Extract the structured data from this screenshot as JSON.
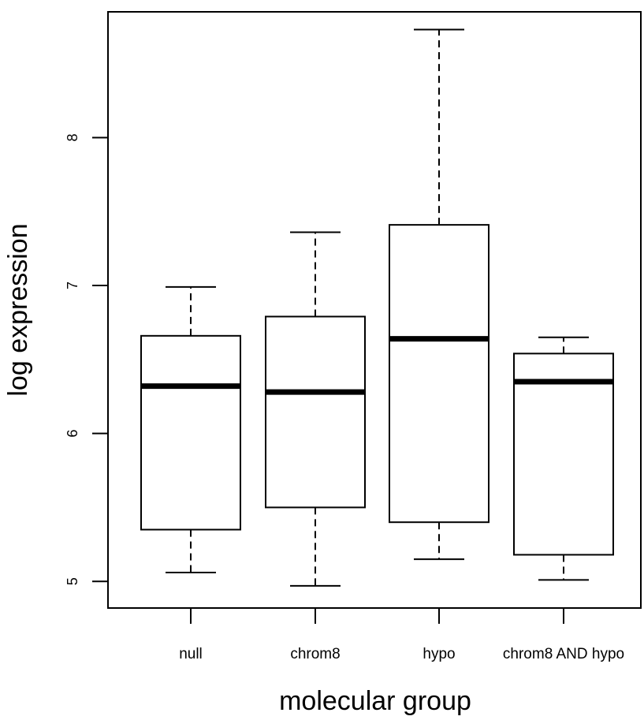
{
  "chart_data": {
    "type": "boxplot",
    "title": "",
    "xlabel": "molecular group",
    "ylabel": "log expression",
    "ylim": [
      4.82,
      8.85
    ],
    "yticks": [
      5,
      6,
      7,
      8
    ],
    "yticks_text": [
      "5",
      "6",
      "7",
      "8"
    ],
    "grid": false,
    "categories": [
      "null",
      "chrom8",
      "hypo",
      "chrom8 AND hypo"
    ],
    "boxes": [
      {
        "label": "null",
        "whisker_low": 5.06,
        "q1": 5.35,
        "median": 6.32,
        "q3": 6.66,
        "whisker_high": 6.99
      },
      {
        "label": "chrom8",
        "whisker_low": 4.97,
        "q1": 5.5,
        "median": 6.28,
        "q3": 6.79,
        "whisker_high": 7.36
      },
      {
        "label": "hypo",
        "whisker_low": 5.15,
        "q1": 5.4,
        "median": 6.64,
        "q3": 7.41,
        "whisker_high": 8.73
      },
      {
        "label": "chrom8 AND hypo",
        "whisker_low": 5.01,
        "q1": 5.18,
        "median": 6.35,
        "q3": 6.54,
        "whisker_high": 6.65
      }
    ]
  }
}
